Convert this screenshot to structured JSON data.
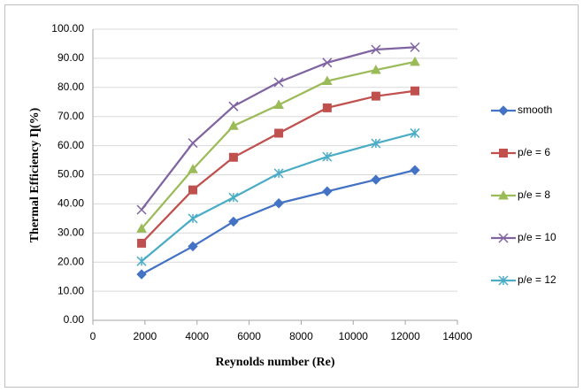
{
  "chart_data": {
    "type": "line",
    "x_label": "Reynolds number  (Re)",
    "y_label": "Thermal  Efficiency Ƞ(%)",
    "x": [
      1870,
      3840,
      5400,
      7140,
      9000,
      10870,
      12370
    ],
    "series": [
      {
        "name": "smooth",
        "color": "#4472c4",
        "marker": "diamond",
        "values": [
          15.8,
          25.4,
          33.9,
          40.2,
          44.3,
          48.3,
          51.6
        ]
      },
      {
        "name": "p/e = 6",
        "color": "#c0504d",
        "marker": "square",
        "values": [
          26.5,
          44.8,
          56.0,
          64.3,
          73.0,
          77.0,
          78.8
        ]
      },
      {
        "name": "p/e = 8",
        "color": "#9bbb59",
        "marker": "triangle",
        "values": [
          31.5,
          51.9,
          66.8,
          74.0,
          82.2,
          86.0,
          88.8
        ]
      },
      {
        "name": "p/e = 10",
        "color": "#8064a2",
        "marker": "x",
        "values": [
          38.0,
          60.9,
          73.5,
          81.8,
          88.5,
          93.0,
          93.8
        ]
      },
      {
        "name": "p/e = 12",
        "color": "#4bacc6",
        "marker": "star",
        "values": [
          20.3,
          35.0,
          42.2,
          50.5,
          56.2,
          60.8,
          64.3
        ]
      }
    ],
    "xlim": [
      0,
      14000
    ],
    "xticks": [
      0,
      2000,
      4000,
      6000,
      8000,
      10000,
      12000,
      14000
    ],
    "ylim": [
      0,
      100
    ],
    "yticks": [
      {
        "value": 0,
        "label": "0.00"
      },
      {
        "value": 10,
        "label": "10.00"
      },
      {
        "value": 20,
        "label": "20.00"
      },
      {
        "value": 30,
        "label": "30.00"
      },
      {
        "value": 40,
        "label": "40.00"
      },
      {
        "value": 50,
        "label": "50.00"
      },
      {
        "value": 60,
        "label": "60.00"
      },
      {
        "value": 70,
        "label": "70.00"
      },
      {
        "value": 80,
        "label": "80.00"
      },
      {
        "value": 90,
        "label": "90.00"
      },
      {
        "value": 100,
        "label": "100.00"
      }
    ],
    "grid": true,
    "legend": "right"
  }
}
